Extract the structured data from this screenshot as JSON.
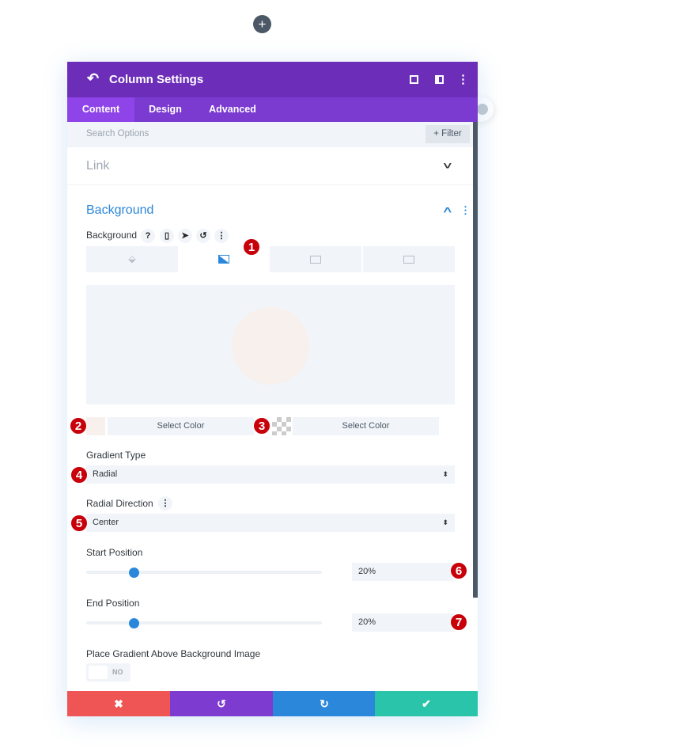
{
  "add_button": "+",
  "header": {
    "title": "Column Settings",
    "back_icon": "↶",
    "icons": [
      "focus-icon",
      "sidebar-icon",
      "more-icon"
    ]
  },
  "tabs": [
    {
      "label": "Content",
      "active": true
    },
    {
      "label": "Design"
    },
    {
      "label": "Advanced"
    }
  ],
  "search": {
    "placeholder": "Search Options",
    "filter_label": "+ Filter"
  },
  "sections": {
    "link": "Link",
    "background": "Background"
  },
  "background": {
    "label": "Background",
    "label_icons": [
      "?",
      "▯",
      "➤",
      "↺",
      "⋮"
    ],
    "type_tabs": [
      "color-icon",
      "gradient-icon",
      "image-icon",
      "video-icon"
    ],
    "active_type": 1,
    "color1": {
      "swatch": "#f8f0ec",
      "label": "Select Color"
    },
    "color2": {
      "swatch": "transparent",
      "label": "Select Color"
    },
    "gradient_type_label": "Gradient Type",
    "gradient_type": "Radial",
    "radial_direction_label": "Radial Direction",
    "radial_direction": "Center",
    "start_position_label": "Start Position",
    "start_position": "20%",
    "start_value": 20,
    "end_position_label": "End Position",
    "end_position": "20%",
    "end_value": 20,
    "place_above_label": "Place Gradient Above Background Image",
    "place_above": "NO"
  },
  "badges": [
    "1",
    "2",
    "3",
    "4",
    "5",
    "6",
    "7"
  ],
  "footer": {
    "cancel": "✖",
    "undo": "↺",
    "redo": "↻",
    "save": "✔",
    "colors": [
      "#ef5555",
      "#7e3bd0",
      "#2b87da",
      "#29c4a9"
    ]
  }
}
